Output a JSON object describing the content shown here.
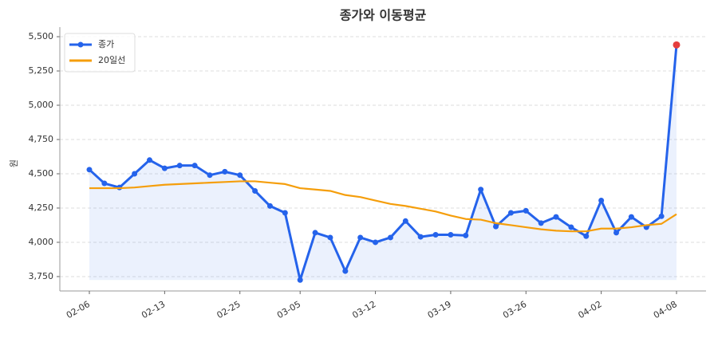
{
  "chart_data": {
    "type": "line",
    "title": "종가와 이동평균",
    "y_label": "원",
    "categories": [
      "02-06",
      null,
      null,
      null,
      null,
      "02-13",
      null,
      null,
      null,
      null,
      "02-25",
      null,
      null,
      null,
      "03-05",
      null,
      null,
      null,
      null,
      "03-12",
      null,
      null,
      null,
      null,
      "03-19",
      null,
      null,
      null,
      null,
      "03-26",
      null,
      null,
      null,
      null,
      "04-02",
      null,
      null,
      null,
      null,
      "04-08"
    ],
    "series": [
      {
        "name": "종가",
        "color": "#2563eb",
        "marker": true,
        "fill": true,
        "last_point_color": "#e53e3e",
        "values": [
          4530,
          4430,
          4400,
          4500,
          4600,
          4540,
          4560,
          4560,
          4490,
          4515,
          4490,
          4375,
          4265,
          4215,
          3725,
          4070,
          4035,
          3790,
          4035,
          4000,
          4035,
          4155,
          4040,
          4055,
          4055,
          4050,
          4385,
          4115,
          4215,
          4230,
          4140,
          4185,
          4110,
          4045,
          4305,
          4070,
          4185,
          4110,
          4190,
          5440
        ]
      },
      {
        "name": "20일선",
        "color": "#f59e0b",
        "marker": false,
        "fill": false,
        "values": [
          4395,
          4395,
          4395,
          4400,
          4410,
          4420,
          4425,
          4430,
          4435,
          4440,
          4445,
          4445,
          4435,
          4425,
          4395,
          4385,
          4375,
          4345,
          4330,
          4305,
          4280,
          4265,
          4245,
          4225,
          4195,
          4170,
          4165,
          4140,
          4125,
          4110,
          4095,
          4085,
          4080,
          4080,
          4100,
          4100,
          4110,
          4125,
          4135,
          4205
        ]
      }
    ],
    "ylim": [
      3645,
      5570
    ],
    "yticks": [
      {
        "value": 3750,
        "label": "3,750"
      },
      {
        "value": 4000,
        "label": "4,000"
      },
      {
        "value": 4250,
        "label": "4,250"
      },
      {
        "value": 4500,
        "label": "4,500"
      },
      {
        "value": 4750,
        "label": "4,750"
      },
      {
        "value": 5000,
        "label": "5,000"
      },
      {
        "value": 5250,
        "label": "5,250"
      },
      {
        "value": 5500,
        "label": "5,500"
      }
    ],
    "grid": true,
    "legend": "upper left"
  }
}
